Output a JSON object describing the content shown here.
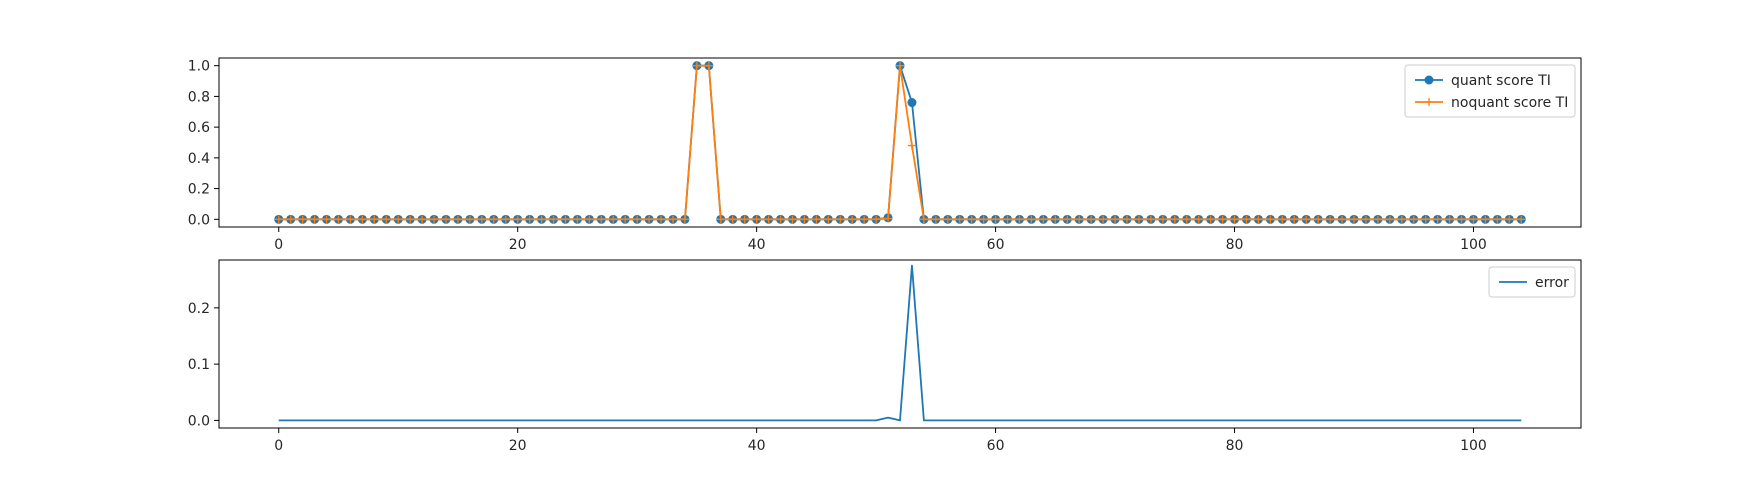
{
  "chart_data": [
    {
      "type": "line",
      "title": "",
      "xlabel": "",
      "ylabel": "",
      "xlim": [
        -5,
        109
      ],
      "ylim": [
        -0.05,
        1.05
      ],
      "xticks": [
        0,
        20,
        40,
        60,
        80,
        100
      ],
      "yticks": [
        0.0,
        0.2,
        0.4,
        0.6,
        0.8,
        1.0
      ],
      "ytick_labels": [
        "0.0",
        "0.2",
        "0.4",
        "0.6",
        "0.8",
        "1.0"
      ],
      "legend_position": "top-right",
      "grid": false,
      "x": {
        "start": 0,
        "end": 104,
        "step": 1
      },
      "series": [
        {
          "name": "quant score TI",
          "color": "#1f77b4",
          "marker": "circle",
          "points": {
            "0": 0,
            "34": 0,
            "35": 1.0,
            "36": 1.0,
            "37": 0,
            "50": 0,
            "51": 0.01,
            "52": 1.0,
            "53": 0.76,
            "54": 0,
            "104": 0
          }
        },
        {
          "name": "noquant score TI",
          "color": "#ff7f0e",
          "marker": "plus",
          "points": {
            "0": 0,
            "34": 0,
            "35": 1.0,
            "36": 1.0,
            "37": 0,
            "50": 0,
            "51": 0.005,
            "52": 1.0,
            "53": 0.48,
            "54": 0,
            "104": 0
          }
        }
      ]
    },
    {
      "type": "line",
      "title": "",
      "xlabel": "",
      "ylabel": "",
      "xlim": [
        -5,
        109
      ],
      "ylim": [
        -0.0135,
        0.285
      ],
      "xticks": [
        0,
        20,
        40,
        60,
        80,
        100
      ],
      "yticks": [
        0.0,
        0.1,
        0.2
      ],
      "ytick_labels": [
        "0.0",
        "0.1",
        "0.2"
      ],
      "legend_position": "top-right",
      "grid": false,
      "x": {
        "start": 0,
        "end": 104,
        "step": 1
      },
      "series": [
        {
          "name": "error",
          "color": "#1f77b4",
          "marker": "none",
          "points": {
            "0": 0,
            "50": 0,
            "51": 0.005,
            "52": 0,
            "53": 0.275,
            "54": 0,
            "104": 0
          }
        }
      ]
    }
  ]
}
